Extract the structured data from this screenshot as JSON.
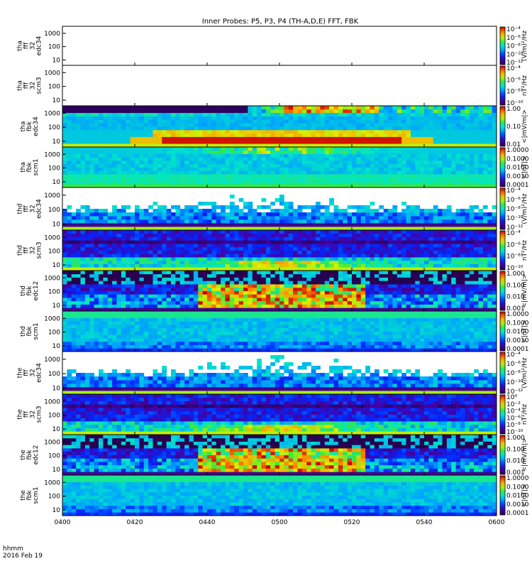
{
  "title": "Inner Probes: P5, P3, P4 (TH-A,D,E) FFT, FBK",
  "footer": {
    "time_label": "hhmm",
    "date_label": "2016 Feb 19"
  },
  "chart_data": {
    "type": "heatmap",
    "x_ticks": [
      "0400",
      "0420",
      "0440",
      "0500",
      "0520",
      "0540",
      "0600"
    ],
    "panels": [
      {
        "ylabel": [
          "tha",
          "fff",
          "32",
          "edc34"
        ],
        "yticks": [
          "1000",
          "100",
          "10"
        ],
        "ylog": true,
        "colorbar_ticks": [
          "10⁻⁴",
          "10⁻⁶",
          "10⁻⁸",
          "10⁻¹⁰",
          "10⁻¹²"
        ],
        "colorbar_unit": "(V/m)²/Hz",
        "empty": true
      },
      {
        "ylabel": [
          "tha",
          "fff",
          "32",
          "scm3"
        ],
        "yticks": [
          "1000",
          "100",
          "10"
        ],
        "ylog": true,
        "colorbar_ticks": [
          "10⁻⁴",
          "10⁻⁶",
          "10⁻⁸",
          "10⁻¹⁰"
        ],
        "colorbar_unit": "nT²/Hz",
        "empty": true
      },
      {
        "ylabel": [
          "tha",
          "fbk",
          "edc34"
        ],
        "yticks": [
          "1000",
          "100",
          "10"
        ],
        "ylog": true,
        "colorbar_ticks": [
          "1.00",
          "0.10",
          "0.01"
        ],
        "colorbar_unit": "<|mV/m|>",
        "pattern": "tha_edc"
      },
      {
        "ylabel": [
          "tha",
          "fbk",
          "scm1"
        ],
        "yticks": [
          "1000",
          "100",
          "10"
        ],
        "ylog": true,
        "colorbar_ticks": [
          "1.0000",
          "0.1000",
          "0.0100",
          "0.0010",
          "0.0001"
        ],
        "colorbar_unit": "<|nT|>",
        "pattern": "tha_scm"
      },
      {
        "ylabel": [
          "thd",
          "fff",
          "32",
          "edc34"
        ],
        "yticks": [
          "1000",
          "100",
          "10"
        ],
        "ylog": true,
        "colorbar_ticks": [
          "10⁻⁴",
          "10⁻⁶",
          "10⁻⁸",
          "10⁻¹⁰",
          "10⁻¹²"
        ],
        "colorbar_unit": "(V/m)²/Hz",
        "pattern": "fff_edc"
      },
      {
        "ylabel": [
          "thd",
          "fff",
          "32",
          "scm3"
        ],
        "yticks": [
          "1000",
          "100",
          "10"
        ],
        "ylog": true,
        "colorbar_ticks": [
          "10⁻⁴",
          "10⁻⁶",
          "10⁻⁸",
          "10⁻¹⁰"
        ],
        "colorbar_unit": "nT²/Hz",
        "pattern": "fff_scm"
      },
      {
        "ylabel": [
          "thd",
          "fbk",
          "edc12"
        ],
        "yticks": [
          "1000",
          "100",
          "10"
        ],
        "ylog": true,
        "colorbar_ticks": [
          "1.000",
          "0.100",
          "0.010",
          "0.001"
        ],
        "colorbar_unit": "<|mV/m|>",
        "pattern": "fbk_edc12"
      },
      {
        "ylabel": [
          "thd",
          "fbk",
          "scm1"
        ],
        "yticks": [
          "1000",
          "100",
          "10"
        ],
        "ylog": true,
        "colorbar_ticks": [
          "1.0000",
          "0.1000",
          "0.0100",
          "0.0010",
          "0.0001"
        ],
        "colorbar_unit": "<|nT|>",
        "pattern": "fbk_scm"
      },
      {
        "ylabel": [
          "the",
          "fff",
          "32",
          "edc34"
        ],
        "yticks": [
          "1000",
          "100",
          "10"
        ],
        "ylog": true,
        "colorbar_ticks": [
          "10⁻⁴",
          "10⁻⁶",
          "10⁻⁸",
          "10⁻¹⁰",
          "10⁻¹²"
        ],
        "colorbar_unit": "(V/m)²/Hz",
        "pattern": "fff_edc"
      },
      {
        "ylabel": [
          "the",
          "fff",
          "32",
          "scm3"
        ],
        "yticks": [
          "1000",
          "100",
          "10"
        ],
        "ylog": true,
        "colorbar_ticks": [
          "10⁰",
          "10⁻²",
          "10⁻⁴",
          "10⁻⁶",
          "10⁻⁸",
          "10⁻¹⁰"
        ],
        "colorbar_unit": "nT²/Hz",
        "pattern": "fff_scm"
      },
      {
        "ylabel": [
          "the",
          "fbk",
          "edc12"
        ],
        "yticks": [
          "1000",
          "100",
          "10"
        ],
        "ylog": true,
        "colorbar_ticks": [
          "1.000",
          "0.100",
          "0.010",
          "0.001"
        ],
        "colorbar_unit": "<|mV/m|>",
        "pattern": "fbk_edc12"
      },
      {
        "ylabel": [
          "the",
          "fbk",
          "scm1"
        ],
        "yticks": [
          "1000",
          "100",
          "10"
        ],
        "ylog": true,
        "colorbar_ticks": [
          "1.0000",
          "0.1000",
          "0.0100",
          "0.0010",
          "0.0001"
        ],
        "colorbar_unit": "<|nT|>",
        "pattern": "fbk_scm"
      }
    ]
  }
}
